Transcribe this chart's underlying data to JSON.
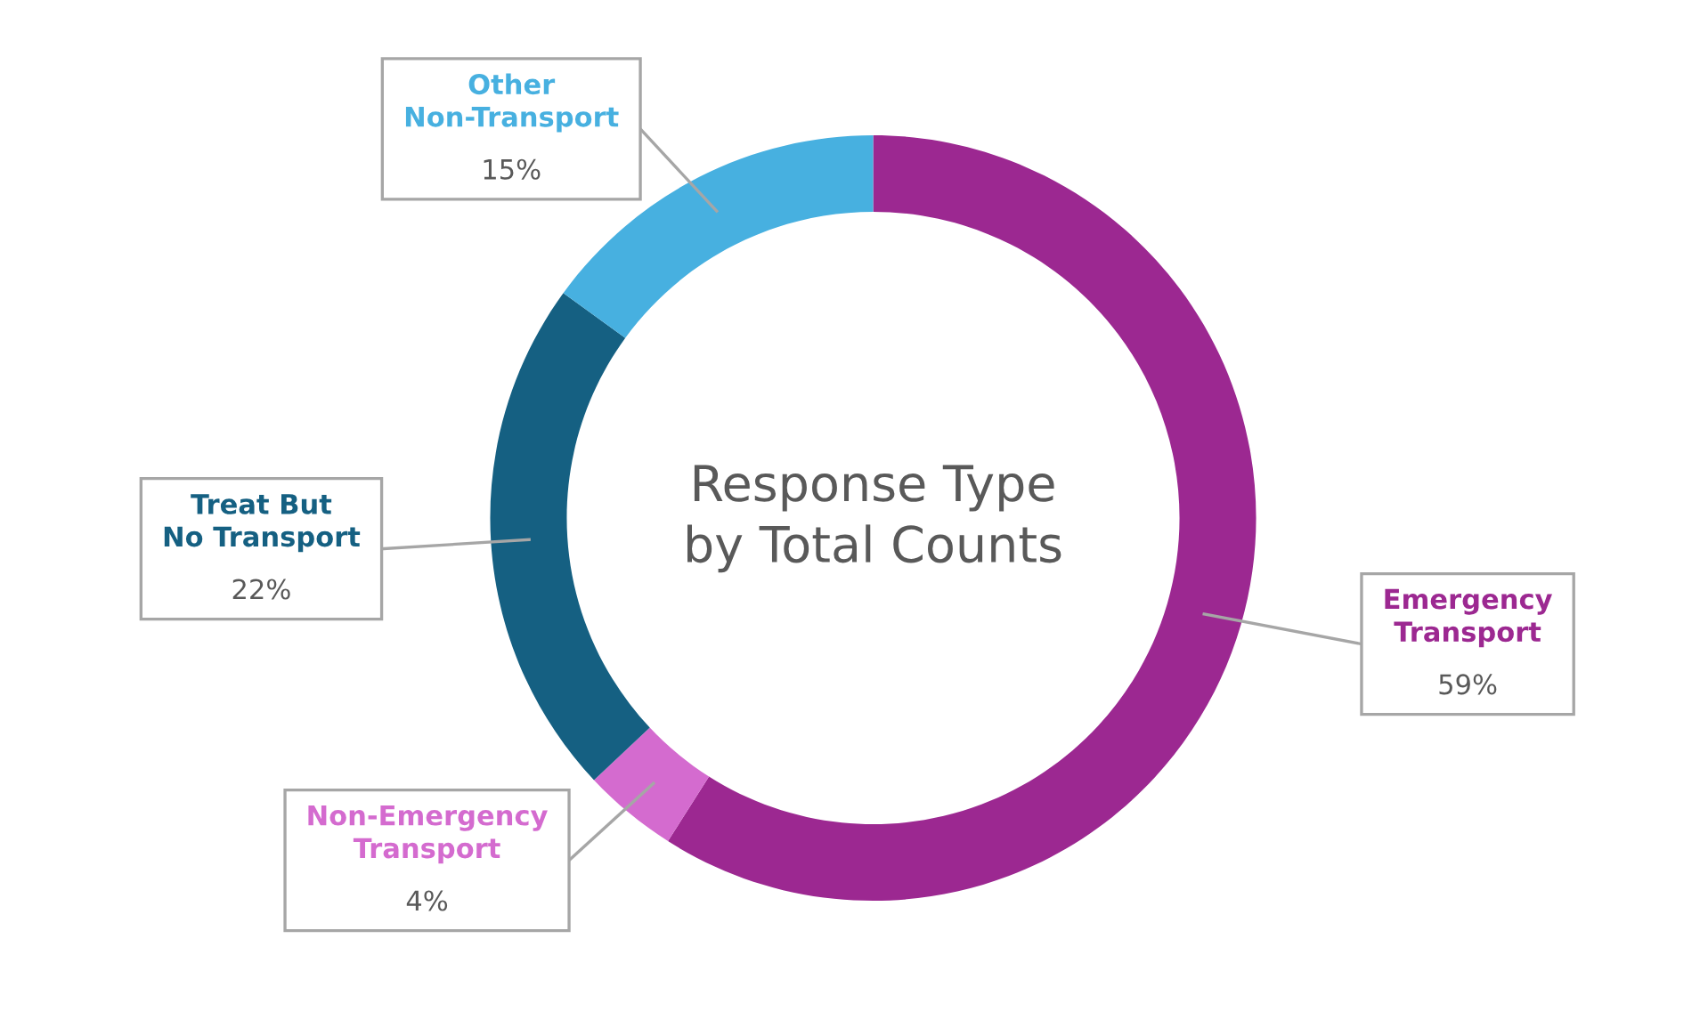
{
  "chart_data": {
    "type": "donut",
    "title": "Response Type by Total Counts",
    "categories": [
      "Emergency Transport",
      "Non-Emergency Transport",
      "Treat But No Transport",
      "Other Non-Transport"
    ],
    "values": [
      59,
      4,
      22,
      15
    ],
    "colors": [
      "#9c2891",
      "#d46bcf",
      "#156082",
      "#47b0e0"
    ],
    "value_labels": [
      "59%",
      "4%",
      "22%",
      "15%"
    ],
    "legend": false
  }
}
